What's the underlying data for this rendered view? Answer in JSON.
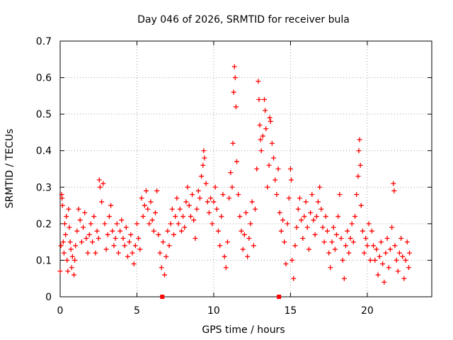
{
  "chart_data": {
    "type": "scatter",
    "title": "Day 046 of 2026, SRMTID for receiver bula",
    "xlabel": "GPS time / hours",
    "ylabel": "SRMTID / TECUs",
    "xlim": [
      0,
      24.2
    ],
    "ylim": [
      0,
      0.7
    ],
    "x_ticks": [
      0,
      5,
      10,
      15,
      20
    ],
    "y_ticks": [
      0,
      0.1,
      0.2,
      0.3,
      0.4,
      0.5,
      0.6,
      0.7
    ],
    "x_tick_labels": [
      "0",
      "5",
      "10",
      "15",
      "20"
    ],
    "y_tick_labels": [
      "0",
      "0.1",
      "0.2",
      "0.3",
      "0.4",
      "0.5",
      "0.6",
      "0.7"
    ],
    "grid": true,
    "marker": "+",
    "color": "#ff0000",
    "series": [
      {
        "name": "SRMTID",
        "points": [
          [
            0.0,
            0.07
          ],
          [
            0.05,
            0.14
          ],
          [
            0.1,
            0.28
          ],
          [
            0.12,
            0.27
          ],
          [
            0.15,
            0.25
          ],
          [
            0.2,
            0.15
          ],
          [
            0.25,
            0.12
          ],
          [
            0.3,
            0.2
          ],
          [
            0.35,
            0.17
          ],
          [
            0.4,
            0.22
          ],
          [
            0.45,
            0.1
          ],
          [
            0.5,
            0.07
          ],
          [
            0.55,
            0.24
          ],
          [
            0.6,
            0.19
          ],
          [
            0.65,
            0.15
          ],
          [
            0.7,
            0.13
          ],
          [
            0.75,
            0.08
          ],
          [
            0.8,
            0.11
          ],
          [
            0.9,
            0.06
          ],
          [
            0.95,
            0.1
          ],
          [
            1.0,
            0.14
          ],
          [
            1.1,
            0.18
          ],
          [
            1.2,
            0.24
          ],
          [
            1.3,
            0.21
          ],
          [
            1.4,
            0.15
          ],
          [
            1.5,
            0.19
          ],
          [
            1.6,
            0.23
          ],
          [
            1.7,
            0.16
          ],
          [
            1.8,
            0.12
          ],
          [
            1.9,
            0.17
          ],
          [
            2.0,
            0.2
          ],
          [
            2.1,
            0.15
          ],
          [
            2.2,
            0.22
          ],
          [
            2.3,
            0.12
          ],
          [
            2.4,
            0.18
          ],
          [
            2.5,
            0.16
          ],
          [
            2.55,
            0.32
          ],
          [
            2.6,
            0.3
          ],
          [
            2.7,
            0.26
          ],
          [
            2.8,
            0.31
          ],
          [
            2.9,
            0.2
          ],
          [
            3.0,
            0.13
          ],
          [
            3.1,
            0.17
          ],
          [
            3.2,
            0.22
          ],
          [
            3.3,
            0.25
          ],
          [
            3.4,
            0.18
          ],
          [
            3.5,
            0.14
          ],
          [
            3.6,
            0.16
          ],
          [
            3.7,
            0.2
          ],
          [
            3.8,
            0.12
          ],
          [
            3.9,
            0.18
          ],
          [
            4.0,
            0.21
          ],
          [
            4.1,
            0.16
          ],
          [
            4.2,
            0.14
          ],
          [
            4.3,
            0.19
          ],
          [
            4.4,
            0.11
          ],
          [
            4.5,
            0.15
          ],
          [
            4.6,
            0.17
          ],
          [
            4.7,
            0.12
          ],
          [
            4.8,
            0.09
          ],
          [
            4.9,
            0.14
          ],
          [
            5.0,
            0.2
          ],
          [
            5.1,
            0.16
          ],
          [
            5.2,
            0.13
          ],
          [
            5.3,
            0.27
          ],
          [
            5.4,
            0.22
          ],
          [
            5.5,
            0.25
          ],
          [
            5.6,
            0.29
          ],
          [
            5.7,
            0.24
          ],
          [
            5.8,
            0.2
          ],
          [
            5.9,
            0.26
          ],
          [
            6.0,
            0.21
          ],
          [
            6.1,
            0.18
          ],
          [
            6.2,
            0.23
          ],
          [
            6.3,
            0.29
          ],
          [
            6.4,
            0.17
          ],
          [
            6.5,
            0.12
          ],
          [
            6.6,
            0.08
          ],
          [
            6.7,
            0.15
          ],
          [
            6.8,
            0.06
          ],
          [
            6.9,
            0.11
          ],
          [
            7.0,
            0.18
          ],
          [
            7.1,
            0.14
          ],
          [
            7.2,
            0.2
          ],
          [
            7.3,
            0.24
          ],
          [
            7.4,
            0.17
          ],
          [
            7.5,
            0.22
          ],
          [
            7.6,
            0.27
          ],
          [
            7.7,
            0.2
          ],
          [
            7.8,
            0.24
          ],
          [
            7.9,
            0.18
          ],
          [
            8.0,
            0.22
          ],
          [
            8.1,
            0.19
          ],
          [
            8.2,
            0.26
          ],
          [
            8.3,
            0.3
          ],
          [
            8.4,
            0.25
          ],
          [
            8.5,
            0.22
          ],
          [
            8.6,
            0.28
          ],
          [
            8.7,
            0.21
          ],
          [
            8.8,
            0.16
          ],
          [
            8.9,
            0.24
          ],
          [
            9.0,
            0.29
          ],
          [
            9.1,
            0.27
          ],
          [
            9.2,
            0.33
          ],
          [
            9.3,
            0.36
          ],
          [
            9.35,
            0.4
          ],
          [
            9.4,
            0.38
          ],
          [
            9.5,
            0.31
          ],
          [
            9.6,
            0.26
          ],
          [
            9.7,
            0.23
          ],
          [
            9.8,
            0.27
          ],
          [
            9.9,
            0.2
          ],
          [
            10.0,
            0.26
          ],
          [
            10.1,
            0.3
          ],
          [
            10.2,
            0.24
          ],
          [
            10.3,
            0.18
          ],
          [
            10.4,
            0.14
          ],
          [
            10.5,
            0.22
          ],
          [
            10.6,
            0.28
          ],
          [
            10.7,
            0.11
          ],
          [
            10.8,
            0.08
          ],
          [
            10.9,
            0.15
          ],
          [
            11.0,
            0.27
          ],
          [
            11.1,
            0.34
          ],
          [
            11.2,
            0.3
          ],
          [
            11.25,
            0.42
          ],
          [
            11.3,
            0.56
          ],
          [
            11.35,
            0.63
          ],
          [
            11.4,
            0.6
          ],
          [
            11.45,
            0.52
          ],
          [
            11.5,
            0.37
          ],
          [
            11.6,
            0.28
          ],
          [
            11.7,
            0.22
          ],
          [
            11.8,
            0.18
          ],
          [
            11.9,
            0.13
          ],
          [
            12.0,
            0.17
          ],
          [
            12.1,
            0.23
          ],
          [
            12.2,
            0.11
          ],
          [
            12.3,
            0.16
          ],
          [
            12.4,
            0.2
          ],
          [
            12.5,
            0.26
          ],
          [
            12.6,
            0.14
          ],
          [
            12.7,
            0.24
          ],
          [
            12.8,
            0.35
          ],
          [
            12.9,
            0.59
          ],
          [
            12.95,
            0.54
          ],
          [
            13.0,
            0.47
          ],
          [
            13.05,
            0.43
          ],
          [
            13.1,
            0.4
          ],
          [
            13.2,
            0.44
          ],
          [
            13.3,
            0.54
          ],
          [
            13.35,
            0.51
          ],
          [
            13.4,
            0.46
          ],
          [
            13.5,
            0.3
          ],
          [
            13.6,
            0.36
          ],
          [
            13.65,
            0.49
          ],
          [
            13.7,
            0.48
          ],
          [
            13.8,
            0.42
          ],
          [
            13.9,
            0.38
          ],
          [
            14.0,
            0.32
          ],
          [
            14.1,
            0.28
          ],
          [
            14.2,
            0.35
          ],
          [
            14.3,
            0.23
          ],
          [
            14.4,
            0.18
          ],
          [
            14.5,
            0.21
          ],
          [
            14.6,
            0.15
          ],
          [
            14.7,
            0.09
          ],
          [
            14.8,
            0.2
          ],
          [
            14.9,
            0.27
          ],
          [
            15.0,
            0.35
          ],
          [
            15.05,
            0.32
          ],
          [
            15.1,
            0.1
          ],
          [
            15.2,
            0.05
          ],
          [
            15.3,
            0.14
          ],
          [
            15.4,
            0.19
          ],
          [
            15.5,
            0.24
          ],
          [
            15.6,
            0.27
          ],
          [
            15.7,
            0.21
          ],
          [
            15.8,
            0.16
          ],
          [
            15.9,
            0.22
          ],
          [
            16.0,
            0.26
          ],
          [
            16.1,
            0.19
          ],
          [
            16.2,
            0.13
          ],
          [
            16.3,
            0.23
          ],
          [
            16.4,
            0.28
          ],
          [
            16.5,
            0.21
          ],
          [
            16.6,
            0.17
          ],
          [
            16.7,
            0.22
          ],
          [
            16.8,
            0.26
          ],
          [
            16.9,
            0.3
          ],
          [
            17.0,
            0.24
          ],
          [
            17.1,
            0.19
          ],
          [
            17.2,
            0.15
          ],
          [
            17.3,
            0.22
          ],
          [
            17.4,
            0.18
          ],
          [
            17.5,
            0.12
          ],
          [
            17.6,
            0.08
          ],
          [
            17.7,
            0.15
          ],
          [
            17.8,
            0.19
          ],
          [
            17.9,
            0.13
          ],
          [
            18.0,
            0.17
          ],
          [
            18.1,
            0.22
          ],
          [
            18.2,
            0.28
          ],
          [
            18.3,
            0.16
          ],
          [
            18.4,
            0.1
          ],
          [
            18.5,
            0.05
          ],
          [
            18.6,
            0.14
          ],
          [
            18.7,
            0.18
          ],
          [
            18.8,
            0.12
          ],
          [
            18.9,
            0.16
          ],
          [
            19.0,
            0.2
          ],
          [
            19.1,
            0.15
          ],
          [
            19.2,
            0.22
          ],
          [
            19.3,
            0.28
          ],
          [
            19.4,
            0.33
          ],
          [
            19.45,
            0.4
          ],
          [
            19.5,
            0.43
          ],
          [
            19.55,
            0.36
          ],
          [
            19.6,
            0.25
          ],
          [
            19.7,
            0.18
          ],
          [
            19.8,
            0.12
          ],
          [
            19.9,
            0.16
          ],
          [
            20.0,
            0.14
          ],
          [
            20.1,
            0.2
          ],
          [
            20.2,
            0.1
          ],
          [
            20.3,
            0.18
          ],
          [
            20.4,
            0.14
          ],
          [
            20.5,
            0.1
          ],
          [
            20.6,
            0.13
          ],
          [
            20.7,
            0.06
          ],
          [
            20.8,
            0.11
          ],
          [
            20.9,
            0.15
          ],
          [
            21.0,
            0.09
          ],
          [
            21.1,
            0.04
          ],
          [
            21.2,
            0.12
          ],
          [
            21.3,
            0.16
          ],
          [
            21.4,
            0.08
          ],
          [
            21.5,
            0.13
          ],
          [
            21.6,
            0.19
          ],
          [
            21.7,
            0.31
          ],
          [
            21.75,
            0.29
          ],
          [
            21.8,
            0.14
          ],
          [
            21.9,
            0.1
          ],
          [
            22.0,
            0.07
          ],
          [
            22.1,
            0.12
          ],
          [
            22.2,
            0.16
          ],
          [
            22.3,
            0.11
          ],
          [
            22.4,
            0.05
          ],
          [
            22.5,
            0.1
          ],
          [
            22.6,
            0.15
          ],
          [
            22.7,
            0.08
          ],
          [
            22.75,
            0.12
          ]
        ]
      }
    ],
    "gap_markers": [
      {
        "x": 6.65,
        "y": 0
      },
      {
        "x": 14.25,
        "y": 0
      }
    ]
  }
}
